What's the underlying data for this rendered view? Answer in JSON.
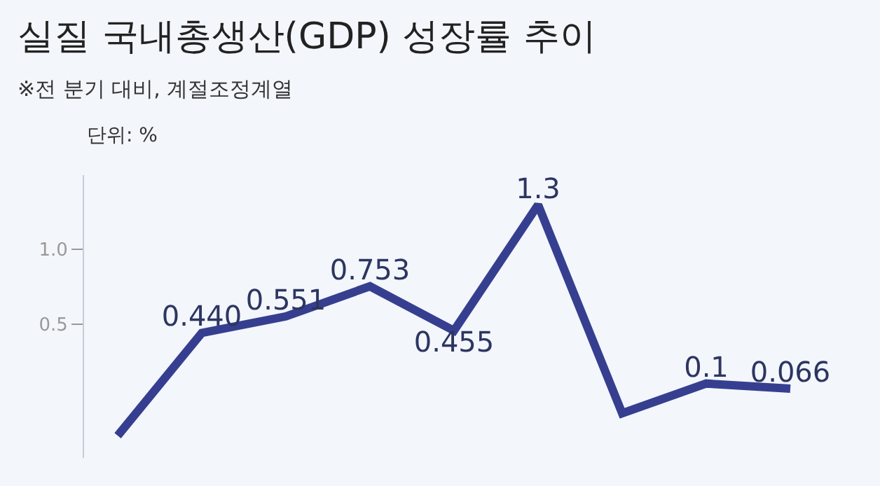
{
  "chart_data": {
    "type": "line",
    "title": "실질 국내총생산(GDP) 성장률 추이",
    "subtitle": "※전 분기 대비, 계절조정계열",
    "ylabel": "단위: %",
    "categories": [
      null,
      null,
      null,
      null,
      null,
      null,
      null,
      null,
      null
    ],
    "series": [
      {
        "color": "#363f8f",
        "values": [
          -0.25,
          0.44,
          0.551,
          0.753,
          0.455,
          1.3,
          -0.1,
          0.1,
          0.066
        ],
        "value_labels": [
          null,
          "0.440",
          "0.551",
          "0.753",
          "0.455",
          "1.3",
          null,
          "0.1",
          "0.066"
        ]
      }
    ],
    "ylim": [
      -0.4,
      1.5
    ],
    "yticks": [
      {
        "value": 0.5,
        "label": "0.5"
      },
      {
        "value": 1.0,
        "label": "1.0"
      }
    ],
    "grid": false,
    "marker": "none",
    "line_style": "solid"
  }
}
